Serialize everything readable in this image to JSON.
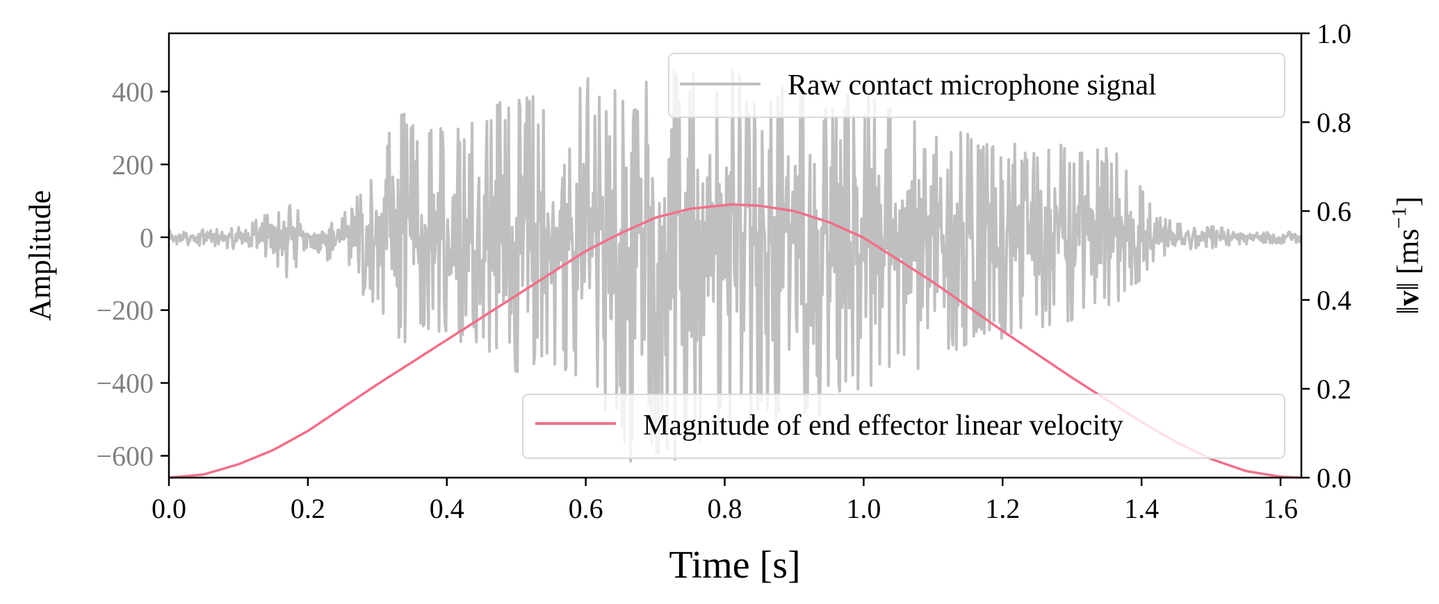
{
  "chart_data": {
    "type": "line",
    "x": {
      "label": "Time [s]",
      "lim": [
        0.0,
        1.63
      ],
      "ticks": [
        0.0,
        0.2,
        0.4,
        0.6,
        0.8,
        1.0,
        1.2,
        1.4,
        1.6
      ],
      "tick_labels": [
        "0.0",
        "0.2",
        "0.4",
        "0.6",
        "0.8",
        "1.0",
        "1.2",
        "1.4",
        "1.6"
      ]
    },
    "y_left": {
      "label": "Amplitude",
      "lim": [
        -660,
        560
      ],
      "ticks": [
        400,
        200,
        0,
        -200,
        -400,
        -600
      ],
      "tick_labels": [
        "400",
        "200",
        "0",
        "−200",
        "−400",
        "−600"
      ]
    },
    "y_right": {
      "label_parts": [
        "‖",
        "v",
        "‖ [ms",
        "−1",
        "]"
      ],
      "lim": [
        0.0,
        1.0
      ],
      "ticks": [
        0.0,
        0.2,
        0.4,
        0.6,
        0.8,
        1.0
      ],
      "tick_labels": [
        "0.0",
        "0.2",
        "0.4",
        "0.6",
        "0.8",
        "1.0"
      ]
    },
    "series": [
      {
        "name": "Raw contact microphone signal",
        "axis": "left",
        "color": "#bfbfbf",
        "envelope": {
          "t": [
            0.0,
            0.08,
            0.12,
            0.15,
            0.18,
            0.2,
            0.25,
            0.3,
            0.33,
            0.38,
            0.45,
            0.5,
            0.55,
            0.6,
            0.65,
            0.7,
            0.75,
            0.8,
            0.85,
            0.9,
            0.95,
            1.0,
            1.05,
            1.1,
            1.15,
            1.2,
            1.25,
            1.3,
            1.34,
            1.38,
            1.42,
            1.46,
            1.5,
            1.55,
            1.63
          ],
          "pos": [
            20,
            25,
            40,
            80,
            100,
            20,
            60,
            200,
            350,
            300,
            370,
            400,
            380,
            450,
            400,
            470,
            480,
            500,
            430,
            460,
            390,
            420,
            350,
            300,
            300,
            250,
            280,
            270,
            250,
            230,
            60,
            35,
            30,
            20,
            15
          ],
          "neg": [
            -20,
            -30,
            -60,
            -90,
            -120,
            -20,
            -100,
            -200,
            -300,
            -250,
            -330,
            -380,
            -350,
            -400,
            -640,
            -600,
            -620,
            -560,
            -600,
            -520,
            -500,
            -470,
            -420,
            -380,
            -300,
            -280,
            -250,
            -230,
            -200,
            -170,
            -60,
            -40,
            -30,
            -20,
            -15
          ]
        }
      },
      {
        "name": "Magnitude of end effector linear velocity",
        "axis": "right",
        "color": "#f07088",
        "x": [
          0.0,
          0.05,
          0.1,
          0.15,
          0.2,
          0.3,
          0.4,
          0.5,
          0.6,
          0.65,
          0.7,
          0.75,
          0.81,
          0.85,
          0.9,
          0.95,
          1.0,
          1.05,
          1.1,
          1.2,
          1.3,
          1.4,
          1.45,
          1.5,
          1.55,
          1.6,
          1.63
        ],
        "y": [
          0.0,
          0.007,
          0.03,
          0.062,
          0.105,
          0.21,
          0.31,
          0.41,
          0.51,
          0.55,
          0.585,
          0.605,
          0.615,
          0.612,
          0.6,
          0.575,
          0.54,
          0.49,
          0.44,
          0.33,
          0.225,
          0.125,
          0.08,
          0.042,
          0.015,
          0.002,
          0.0
        ]
      }
    ],
    "legends": [
      {
        "series": "Raw contact microphone signal",
        "location": "upper-right"
      },
      {
        "series": "Magnitude of end effector linear velocity",
        "location": "lower-right"
      }
    ]
  }
}
